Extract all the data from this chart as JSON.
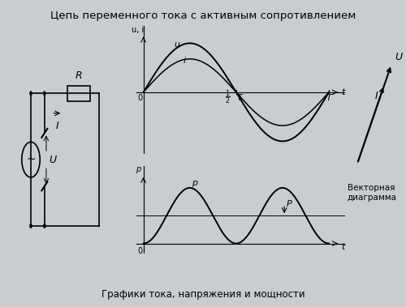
{
  "title": "Цепь переменного тока с активным сопротивлением",
  "subtitle": "Графики тока, напряжения и мощности",
  "bg_color": "#c8cdd0",
  "line_color": "#000000",
  "top_ylabel": "u, i",
  "u_amplitude": 1.0,
  "i_amplitude": 0.68,
  "p_mean": 0.34,
  "label_u": "u",
  "label_i": "i",
  "label_p": "p",
  "label_p_mean": "P",
  "vector_text": "Векторная\nдиаграмма"
}
